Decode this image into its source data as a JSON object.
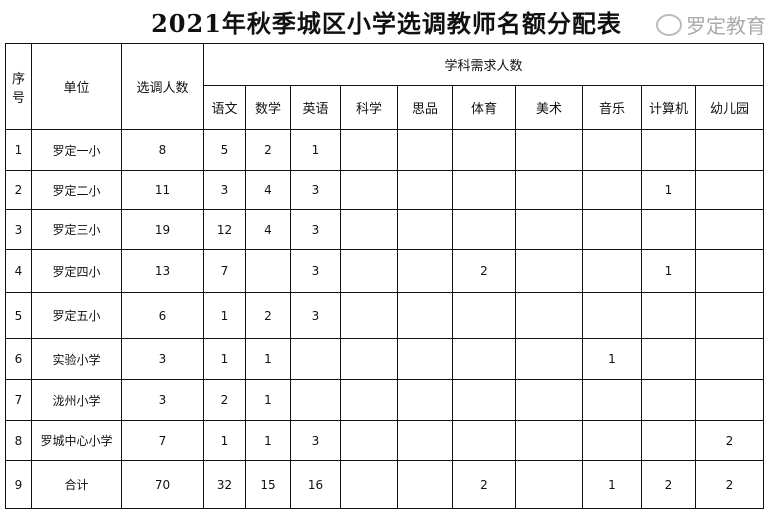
{
  "title": "2021年秋季城区小学选调教师名额分配表",
  "headers": {
    "seq": "序号",
    "unit": "单位",
    "count": "选调人数",
    "subject_group": "学科需求人数",
    "subjects": [
      "语文",
      "数学",
      "英语",
      "科学",
      "思品",
      "体育",
      "美术",
      "音乐",
      "计算机",
      "幼儿园"
    ]
  },
  "rows": [
    {
      "seq": "1",
      "unit": "罗定一小",
      "count": "8",
      "cells": [
        "5",
        "2",
        "1",
        "",
        "",
        "",
        "",
        "",
        "",
        ""
      ]
    },
    {
      "seq": "2",
      "unit": "罗定二小",
      "count": "11",
      "cells": [
        "3",
        "4",
        "3",
        "",
        "",
        "",
        "",
        "",
        "1",
        ""
      ]
    },
    {
      "seq": "3",
      "unit": "罗定三小",
      "count": "19",
      "cells": [
        "12",
        "4",
        "3",
        "",
        "",
        "",
        "",
        "",
        "",
        ""
      ]
    },
    {
      "seq": "4",
      "unit": "罗定四小",
      "count": "13",
      "cells": [
        "7",
        "",
        "3",
        "",
        "",
        "2",
        "",
        "",
        "1",
        ""
      ]
    },
    {
      "seq": "5",
      "unit": "罗定五小",
      "count": "6",
      "cells": [
        "1",
        "2",
        "3",
        "",
        "",
        "",
        "",
        "",
        "",
        ""
      ]
    },
    {
      "seq": "6",
      "unit": "实验小学",
      "count": "3",
      "cells": [
        "1",
        "1",
        "",
        "",
        "",
        "",
        "",
        "1",
        "",
        ""
      ]
    },
    {
      "seq": "7",
      "unit": "泷州小学",
      "count": "3",
      "cells": [
        "2",
        "1",
        "",
        "",
        "",
        "",
        "",
        "",
        "",
        ""
      ]
    },
    {
      "seq": "8",
      "unit": "罗城中心小学",
      "count": "7",
      "cells": [
        "1",
        "1",
        "3",
        "",
        "",
        "",
        "",
        "",
        "",
        "2"
      ]
    },
    {
      "seq": "9",
      "unit": "合计",
      "count": "70",
      "cells": [
        "32",
        "15",
        "16",
        "",
        "",
        "2",
        "",
        "1",
        "2",
        "2"
      ]
    }
  ],
  "watermark": "罗定教育"
}
